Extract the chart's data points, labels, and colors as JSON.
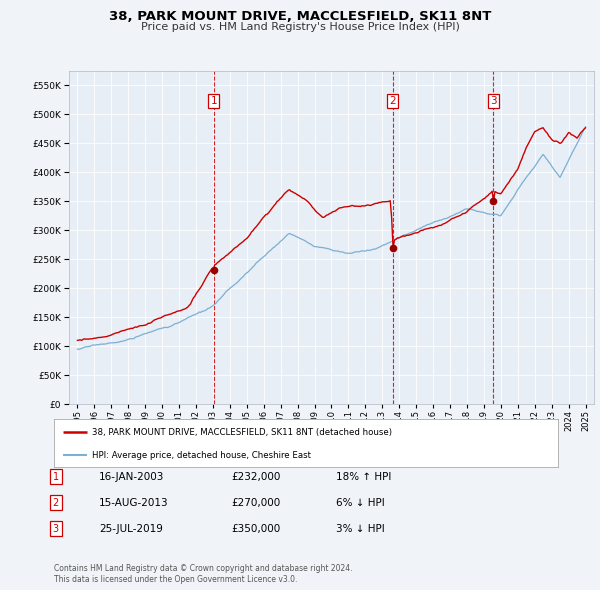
{
  "title": "38, PARK MOUNT DRIVE, MACCLESFIELD, SK11 8NT",
  "subtitle": "Price paid vs. HM Land Registry's House Price Index (HPI)",
  "legend_line1": "38, PARK MOUNT DRIVE, MACCLESFIELD, SK11 8NT (detached house)",
  "legend_line2": "HPI: Average price, detached house, Cheshire East",
  "footer_line1": "Contains HM Land Registry data © Crown copyright and database right 2024.",
  "footer_line2": "This data is licensed under the Open Government Licence v3.0.",
  "transactions": [
    {
      "num": 1,
      "date": "16-JAN-2003",
      "price": "£232,000",
      "pct": "18%",
      "dir": "↑"
    },
    {
      "num": 2,
      "date": "15-AUG-2013",
      "price": "£270,000",
      "pct": "6%",
      "dir": "↓"
    },
    {
      "num": 3,
      "date": "25-JUL-2019",
      "price": "£350,000",
      "pct": "3%",
      "dir": "↓"
    }
  ],
  "transaction_years": [
    2003.04,
    2013.62,
    2019.56
  ],
  "transaction_marker_vals": [
    232000,
    270000,
    350000
  ],
  "price_color": "#cc0000",
  "hpi_color": "#7bafd4",
  "marker_color": "#990000",
  "vline_color": "#cc0000",
  "background_color": "#f0f4f8",
  "plot_bg_color": "#e8eef5",
  "ylim": [
    0,
    575000
  ],
  "yticks": [
    0,
    50000,
    100000,
    150000,
    200000,
    250000,
    300000,
    350000,
    400000,
    450000,
    500000,
    550000
  ],
  "xlim": [
    1994.5,
    2025.5
  ],
  "xticks": [
    1995,
    1996,
    1997,
    1998,
    1999,
    2000,
    2001,
    2002,
    2003,
    2004,
    2005,
    2006,
    2007,
    2008,
    2009,
    2010,
    2011,
    2012,
    2013,
    2014,
    2015,
    2016,
    2017,
    2018,
    2019,
    2020,
    2021,
    2022,
    2023,
    2024,
    2025
  ]
}
